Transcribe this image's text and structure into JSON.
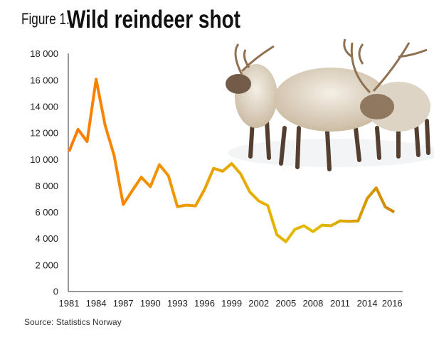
{
  "figure_label": "Figure 1.",
  "source": "Source: Statistics Norway",
  "image_description_icon": "reindeer-herd-photo",
  "chart_data": {
    "type": "line",
    "title": "Wild reindeer shot",
    "xlabel": "",
    "ylabel": "",
    "ylim": [
      0,
      18000
    ],
    "grid": false,
    "legend": "none",
    "y_ticks": [
      "0",
      "2 000",
      "4 000",
      "6 000",
      "8 000",
      "10 000",
      "12 000",
      "14 000",
      "16 000",
      "18 000"
    ],
    "x_tick_labels": [
      "1981",
      "1984",
      "1987",
      "1990",
      "1993",
      "1996",
      "1999",
      "2002",
      "2005",
      "2008",
      "2011",
      "2014",
      "2016"
    ],
    "x": [
      1981,
      1982,
      1983,
      1984,
      1985,
      1986,
      1987,
      1988,
      1989,
      1990,
      1991,
      1992,
      1993,
      1994,
      1995,
      1996,
      1997,
      1998,
      1999,
      2000,
      2001,
      2002,
      2003,
      2004,
      2005,
      2006,
      2007,
      2008,
      2009,
      2010,
      2011,
      2012,
      2013,
      2014,
      2015,
      2016,
      2017
    ],
    "values": [
      10600,
      12280,
      11360,
      16080,
      12580,
      10280,
      6590,
      7640,
      8660,
      7940,
      9610,
      8770,
      6430,
      6540,
      6490,
      7730,
      9330,
      9110,
      9690,
      8900,
      7550,
      6860,
      6510,
      4310,
      3770,
      4710,
      4980,
      4540,
      5030,
      4980,
      5350,
      5320,
      5350,
      7050,
      7850,
      6410,
      6020
    ],
    "line_gradient": [
      "#FF7A00",
      "#F29000",
      "#E8A800",
      "#E2BC00",
      "#D08600"
    ]
  }
}
